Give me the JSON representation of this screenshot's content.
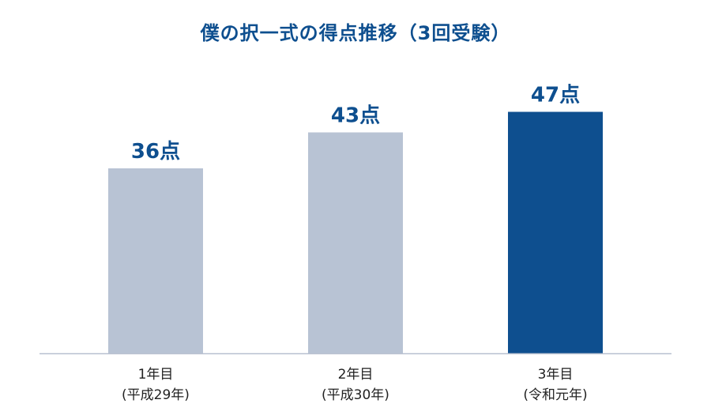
{
  "chart_data": {
    "type": "bar",
    "title": "僕の択一式の得点推移（3回受験）",
    "categories": [
      "1年目",
      "2年目",
      "3年目"
    ],
    "category_sublabels": [
      "(平成29年)",
      "(平成30年)",
      "(令和元年)"
    ],
    "values": [
      36,
      43,
      47
    ],
    "value_unit": "点",
    "data_labels": [
      "36点",
      "43点",
      "47点"
    ],
    "xlabel": "",
    "ylabel": "",
    "ylim": [
      0,
      53
    ],
    "grid": false,
    "legend": "none",
    "colors": {
      "default_bar": "#b8c3d4",
      "highlight_bar": "#0e4f8f",
      "label": "#0e4f8f",
      "axis": "#b8c0d0",
      "title": "#0e4f8f"
    },
    "highlight_index": 2
  }
}
